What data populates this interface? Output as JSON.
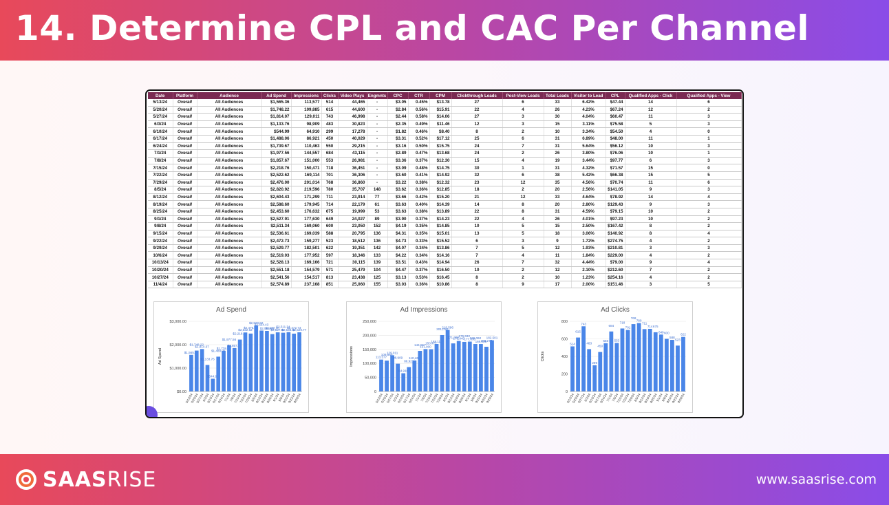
{
  "slide": {
    "title": "14. Determine CPL and CAC Per Channel",
    "logo_text_bold": "SAAS",
    "logo_text_light": "RISE",
    "url": "www.saasrise.com"
  },
  "table": {
    "columns": [
      "Date",
      "Platform",
      "Audience",
      "Ad Spend",
      "Impressions",
      "Clicks",
      "Video Plays",
      "Engmnts",
      "CPC",
      "CTR",
      "CPM",
      "Clickthrough Leads",
      "Post-View Leads",
      "Total Leads",
      "Visitor to Lead",
      "CPL",
      "Qualified Apps - Click",
      "Qualified Apps - View"
    ],
    "rows": [
      [
        "5/13/24",
        "Overall",
        "All Audiences",
        "$1,565.36",
        "113,577",
        "514",
        "44,465",
        "-",
        "$3.05",
        "0.45%",
        "$13.78",
        "27",
        "6",
        "33",
        "6.42%",
        "$47.44",
        "14",
        "6"
      ],
      [
        "5/20/24",
        "Overall",
        "All Audiences",
        "$1,748.22",
        "109,885",
        "615",
        "44,600",
        "-",
        "$2.84",
        "0.56%",
        "$15.91",
        "22",
        "4",
        "26",
        "4.23%",
        "$67.24",
        "12",
        "2"
      ],
      [
        "5/27/24",
        "Overall",
        "All Audiences",
        "$1,814.07",
        "129,011",
        "743",
        "46,998",
        "-",
        "$2.44",
        "0.58%",
        "$14.06",
        "27",
        "3",
        "30",
        "4.04%",
        "$60.47",
        "11",
        "3"
      ],
      [
        "6/3/24",
        "Overall",
        "All Audiences",
        "$1,133.76",
        "98,909",
        "483",
        "30,823",
        "-",
        "$2.35",
        "0.49%",
        "$11.46",
        "12",
        "3",
        "15",
        "3.11%",
        "$75.58",
        "5",
        "3"
      ],
      [
        "6/10/24",
        "Overall",
        "All Audiences",
        "$544.99",
        "64,910",
        "299",
        "17,278",
        "-",
        "$1.82",
        "0.46%",
        "$8.40",
        "8",
        "2",
        "10",
        "3.34%",
        "$54.50",
        "4",
        "0"
      ],
      [
        "6/17/24",
        "Overall",
        "All Audiences",
        "$1,488.06",
        "86,921",
        "450",
        "40,029",
        "-",
        "$3.31",
        "0.52%",
        "$17.12",
        "25",
        "6",
        "31",
        "6.89%",
        "$48.00",
        "11",
        "1"
      ],
      [
        "6/24/24",
        "Overall",
        "All Audiences",
        "$1,739.67",
        "110,463",
        "550",
        "29,215",
        "-",
        "$3.16",
        "0.50%",
        "$15.75",
        "24",
        "7",
        "31",
        "5.64%",
        "$56.12",
        "10",
        "3"
      ],
      [
        "7/1/24",
        "Overall",
        "All Audiences",
        "$1,977.56",
        "144,557",
        "684",
        "43,115",
        "-",
        "$2.89",
        "0.47%",
        "$13.68",
        "24",
        "2",
        "26",
        "3.80%",
        "$76.06",
        "10",
        "1"
      ],
      [
        "7/8/24",
        "Overall",
        "All Audiences",
        "$1,857.67",
        "151,000",
        "553",
        "26,981",
        "-",
        "$3.36",
        "0.37%",
        "$12.30",
        "15",
        "4",
        "19",
        "3.44%",
        "$97.77",
        "6",
        "3"
      ],
      [
        "7/15/24",
        "Overall",
        "All Audiences",
        "$2,218.76",
        "150,471",
        "718",
        "36,451",
        "-",
        "$3.09",
        "0.48%",
        "$14.75",
        "30",
        "1",
        "31",
        "4.32%",
        "$71.57",
        "15",
        "0"
      ],
      [
        "7/22/24",
        "Overall",
        "All Audiences",
        "$2,522.62",
        "169,114",
        "701",
        "36,306",
        "-",
        "$3.60",
        "0.41%",
        "$14.92",
        "32",
        "6",
        "38",
        "5.42%",
        "$66.38",
        "15",
        "5"
      ],
      [
        "7/29/24",
        "Overall",
        "All Audiences",
        "$2,476.00",
        "201,014",
        "768",
        "36,860",
        "-",
        "$3.22",
        "0.38%",
        "$12.32",
        "23",
        "12",
        "35",
        "4.56%",
        "$70.74",
        "11",
        "6"
      ],
      [
        "8/5/24",
        "Overall",
        "All Audiences",
        "$2,820.92",
        "219,596",
        "780",
        "35,707",
        "148",
        "$3.62",
        "0.36%",
        "$12.85",
        "18",
        "2",
        "20",
        "2.56%",
        "$141.05",
        "9",
        "3"
      ],
      [
        "8/12/24",
        "Overall",
        "All Audiences",
        "$2,604.43",
        "171,299",
        "711",
        "23,914",
        "77",
        "$3.66",
        "0.42%",
        "$15.20",
        "21",
        "12",
        "33",
        "4.64%",
        "$78.92",
        "14",
        "4"
      ],
      [
        "8/19/24",
        "Overall",
        "All Audiences",
        "$2,588.60",
        "179,945",
        "714",
        "22,179",
        "61",
        "$3.63",
        "0.40%",
        "$14.39",
        "14",
        "8",
        "20",
        "2.80%",
        "$129.43",
        "9",
        "3"
      ],
      [
        "8/25/24",
        "Overall",
        "All Audiences",
        "$2,453.60",
        "176,632",
        "675",
        "19,999",
        "53",
        "$3.63",
        "0.38%",
        "$13.89",
        "22",
        "8",
        "31",
        "4.59%",
        "$79.15",
        "10",
        "2"
      ],
      [
        "9/1/24",
        "Overall",
        "All Audiences",
        "$2,527.91",
        "177,630",
        "649",
        "24,027",
        "89",
        "$3.90",
        "0.37%",
        "$14.23",
        "22",
        "4",
        "26",
        "4.01%",
        "$97.23",
        "10",
        "2"
      ],
      [
        "9/8/24",
        "Overall",
        "All Audiences",
        "$2,511.34",
        "169,060",
        "600",
        "23,050",
        "152",
        "$4.19",
        "0.35%",
        "$14.85",
        "10",
        "5",
        "15",
        "2.50%",
        "$167.42",
        "8",
        "2"
      ],
      [
        "9/15/24",
        "Overall",
        "All Audiences",
        "$2,536.61",
        "169,039",
        "588",
        "20,795",
        "136",
        "$4.31",
        "0.35%",
        "$15.01",
        "13",
        "5",
        "18",
        "3.06%",
        "$140.92",
        "8",
        "4"
      ],
      [
        "9/22/24",
        "Overall",
        "All Audiences",
        "$2,472.73",
        "159,277",
        "523",
        "18,512",
        "136",
        "$4.73",
        "0.33%",
        "$15.52",
        "6",
        "3",
        "9",
        "1.72%",
        "$274.75",
        "4",
        "2"
      ],
      [
        "9/29/24",
        "Overall",
        "All Audiences",
        "$2,529.77",
        "182,501",
        "622",
        "19,351",
        "142",
        "$4.07",
        "0.34%",
        "$13.86",
        "7",
        "5",
        "12",
        "1.93%",
        "$210.81",
        "3",
        "3"
      ],
      [
        "10/6/24",
        "Overall",
        "All Audiences",
        "$2,519.03",
        "177,952",
        "597",
        "18,346",
        "133",
        "$4.22",
        "0.34%",
        "$14.16",
        "7",
        "4",
        "11",
        "1.84%",
        "$229.00",
        "4",
        "2"
      ],
      [
        "10/13/24",
        "Overall",
        "All Audiences",
        "$2,528.13",
        "169,166",
        "721",
        "30,115",
        "139",
        "$3.51",
        "0.43%",
        "$14.94",
        "26",
        "7",
        "32",
        "4.44%",
        "$79.00",
        "9",
        "4"
      ],
      [
        "10/20/24",
        "Overall",
        "All Audiences",
        "$2,551.18",
        "154,579",
        "571",
        "25,479",
        "104",
        "$4.47",
        "0.37%",
        "$16.50",
        "10",
        "2",
        "12",
        "2.10%",
        "$212.60",
        "7",
        "2"
      ],
      [
        "10/27/24",
        "Overall",
        "All Audiences",
        "$2,541.56",
        "154,517",
        "813",
        "23,438",
        "125",
        "$3.13",
        "0.53%",
        "$16.45",
        "8",
        "2",
        "10",
        "1.23%",
        "$254.16",
        "4",
        "2"
      ],
      [
        "11/4/24",
        "Overall",
        "All Audiences",
        "$2,574.89",
        "237,168",
        "851",
        "25,060",
        "155",
        "$3.03",
        "0.36%",
        "$10.86",
        "8",
        "9",
        "17",
        "2.00%",
        "$151.46",
        "3",
        "5"
      ]
    ]
  },
  "chart_data": [
    {
      "type": "bar",
      "title": "Ad Spend",
      "ylabel": "Ad Spend",
      "xlabel": "",
      "ylim": [
        0,
        3000
      ],
      "yticks": [
        "$0.00",
        "$1,000.00",
        "$2,000.00",
        "$3,000.00"
      ],
      "color": "#4a86e8",
      "categories": [
        "5/13/24",
        "5/20/24",
        "5/27/24",
        "6/3/24",
        "6/10/24",
        "6/17/24",
        "6/24/24",
        "7/1/24",
        "7/8/24",
        "7/15/24",
        "7/22/24",
        "7/29/24",
        "8/5/24",
        "8/12/24",
        "8/19/24",
        "8/25/24",
        "9/1/24",
        "9/8/24",
        "9/15/24",
        "9/22/24",
        "9/29/24"
      ],
      "values": [
        1565.36,
        1748.22,
        1814.07,
        1133.76,
        544.99,
        1488.06,
        1739.67,
        1977.56,
        1857.67,
        2218.76,
        2522.62,
        2476.0,
        2820.92,
        2604.43,
        2588.6,
        2453.6,
        2527.91,
        2511.34,
        2536.61,
        2472.73,
        2529.77
      ],
      "labels": [
        "$1,565.36",
        "$1,748.22",
        "$1,814.07",
        "$1,133.76",
        "$544.99",
        "$1,488.06",
        "$1,739.67",
        "$1,977.56",
        "$1,857.67",
        "$2,218.76",
        "$2,522.62",
        "$2,476.00",
        "$2,820.92",
        "$2,604.43",
        "$2,588.60",
        "$2,453.60",
        "$2,527.91",
        "$2,511.34",
        "$2,536.61",
        "$2,472.73",
        "$2,529.77"
      ]
    },
    {
      "type": "bar",
      "title": "Ad Impressions",
      "ylabel": "Impressions",
      "xlabel": "",
      "ylim": [
        0,
        250000
      ],
      "yticks": [
        "0",
        "50,000",
        "100,000",
        "150,000",
        "200,000",
        "250,000"
      ],
      "color": "#4a86e8",
      "categories": [
        "5/13/24",
        "5/20/24",
        "5/27/24",
        "6/3/24",
        "6/10/24",
        "6/17/24",
        "6/24/24",
        "7/1/24",
        "7/8/24",
        "7/15/24",
        "7/22/24",
        "7/29/24",
        "8/5/24",
        "8/12/24",
        "8/19/24",
        "8/25/24",
        "9/1/24",
        "9/8/24",
        "9/15/24",
        "9/22/24",
        "9/29/24"
      ],
      "values": [
        113577,
        109885,
        129011,
        98909,
        64910,
        86921,
        110463,
        144557,
        151000,
        150471,
        169114,
        201014,
        219596,
        171299,
        179945,
        176632,
        177630,
        169060,
        169039,
        159277,
        182501
      ],
      "labels": [
        "113,577",
        "109,885",
        "129,011",
        "98,909",
        "64,910",
        "86,921",
        "110,463",
        "144,557",
        "151,000",
        "150,471",
        "169,114",
        "201,014",
        "219,596",
        "171,299",
        "179,945",
        "176,632",
        "177,630",
        "169,060",
        "169,039",
        "159,277",
        "182,501"
      ]
    },
    {
      "type": "bar",
      "title": "Ad Clicks",
      "ylabel": "Clicks",
      "xlabel": "",
      "ylim": [
        0,
        800
      ],
      "yticks": [
        "0",
        "200",
        "400",
        "600",
        "800"
      ],
      "color": "#4a86e8",
      "categories": [
        "5/13/24",
        "5/20/24",
        "5/27/24",
        "6/3/24",
        "6/10/24",
        "6/17/24",
        "6/24/24",
        "7/1/24",
        "7/8/24",
        "7/15/24",
        "7/22/24",
        "7/29/24",
        "8/5/24",
        "8/12/24",
        "8/19/24",
        "8/25/24",
        "9/1/24",
        "9/8/24",
        "9/15/24",
        "9/22/24",
        "9/29/24"
      ],
      "values": [
        514,
        615,
        743,
        483,
        299,
        450,
        550,
        684,
        553,
        718,
        701,
        768,
        780,
        711,
        714,
        675,
        649,
        600,
        588,
        523,
        622
      ],
      "labels": [
        "514",
        "615",
        "743",
        "483",
        "299",
        "450",
        "550",
        "684",
        "553",
        "718",
        "701",
        "768",
        "780",
        "711",
        "714",
        "675",
        "649",
        "600",
        "588",
        "523",
        "622"
      ]
    }
  ]
}
